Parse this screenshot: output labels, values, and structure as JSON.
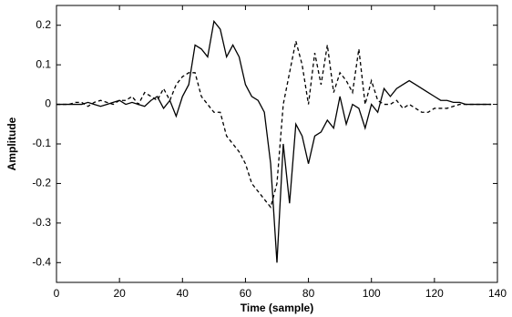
{
  "chart_data": {
    "type": "line",
    "xlabel": "Time (sample)",
    "ylabel": "Amplitude",
    "x": [
      0,
      2,
      4,
      6,
      8,
      10,
      12,
      14,
      16,
      18,
      20,
      22,
      24,
      26,
      28,
      30,
      32,
      34,
      36,
      38,
      40,
      42,
      44,
      46,
      48,
      50,
      52,
      54,
      56,
      58,
      60,
      62,
      64,
      66,
      68,
      70,
      72,
      74,
      76,
      78,
      80,
      82,
      84,
      86,
      88,
      90,
      92,
      94,
      96,
      98,
      100,
      102,
      104,
      106,
      108,
      110,
      112,
      114,
      116,
      118,
      120,
      122,
      124,
      126,
      128,
      130,
      132,
      134,
      136,
      138
    ],
    "series": [
      {
        "color": "#000000",
        "line_style": "solid",
        "values": [
          0,
          0,
          0,
          0,
          0,
          0.005,
          0,
          -0.005,
          0,
          0.005,
          0.01,
          0,
          0.005,
          0,
          -0.005,
          0.01,
          0.02,
          -0.01,
          0.01,
          -0.03,
          0.02,
          0.05,
          0.15,
          0.14,
          0.12,
          0.21,
          0.19,
          0.12,
          0.15,
          0.12,
          0.05,
          0.02,
          0.01,
          -0.02,
          -0.15,
          -0.4,
          -0.1,
          -0.25,
          -0.05,
          -0.08,
          -0.15,
          -0.08,
          -0.07,
          -0.04,
          -0.06,
          0.02,
          -0.05,
          0,
          -0.01,
          -0.06,
          0,
          -0.02,
          0.04,
          0.02,
          0.04,
          0.05,
          0.06,
          0.05,
          0.04,
          0.03,
          0.02,
          0.01,
          0.01,
          0.005,
          0.005,
          0,
          0,
          0,
          0,
          0
        ]
      },
      {
        "color": "#000000",
        "line_style": "dashed",
        "values": [
          0,
          0,
          0,
          0.005,
          0.005,
          -0.005,
          0.005,
          0.01,
          0.005,
          0,
          0.01,
          0.01,
          0.02,
          0,
          0.03,
          0.02,
          0.01,
          0.04,
          0.01,
          0.05,
          0.07,
          0.08,
          0.08,
          0.02,
          0,
          -0.02,
          -0.02,
          -0.08,
          -0.1,
          -0.12,
          -0.15,
          -0.2,
          -0.22,
          -0.24,
          -0.26,
          -0.2,
          0,
          0.08,
          0.16,
          0.1,
          0,
          0.13,
          0.05,
          0.15,
          0.03,
          0.08,
          0.06,
          0.03,
          0.14,
          0,
          0.06,
          0.01,
          0,
          0,
          0.01,
          -0.01,
          0,
          -0.01,
          -0.02,
          -0.02,
          -0.01,
          -0.01,
          -0.01,
          -0.005,
          0,
          0,
          0,
          0,
          0,
          0
        ]
      }
    ],
    "xlim": [
      0,
      140
    ],
    "xticks": [
      0,
      20,
      40,
      60,
      80,
      100,
      120,
      140
    ],
    "ylim": [
      -0.45,
      0.25
    ],
    "yticks": [
      -0.4,
      -0.3,
      -0.2,
      -0.1,
      0,
      0.1,
      0.2
    ],
    "grid": false
  }
}
